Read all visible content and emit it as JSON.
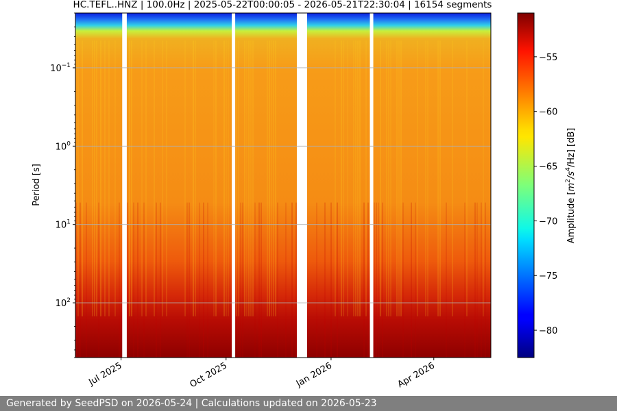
{
  "chart_data": {
    "type": "heatmap",
    "title": "HC.TEFL..HNZ | 100.0Hz | 2025-05-22T00:00:05 - 2026-05-21T22:30:04 | 16154 segments",
    "ylabel": "Period [s]",
    "y_scale": "log",
    "y_inverted": true,
    "y_ticks": [
      {
        "value": 0.1,
        "base": "10",
        "exp": "−1"
      },
      {
        "value": 1,
        "base": "10",
        "exp": "0"
      },
      {
        "value": 10,
        "base": "10",
        "exp": "1"
      },
      {
        "value": 100,
        "base": "10",
        "exp": "2"
      }
    ],
    "ylim": [
      0.02,
      500
    ],
    "x_type": "date",
    "xlim": [
      "2025-05-22",
      "2026-05-21"
    ],
    "x_ticks": [
      {
        "date": "2025-07-01",
        "label": "Jul 2025"
      },
      {
        "date": "2025-10-01",
        "label": "Oct 2025"
      },
      {
        "date": "2026-01-01",
        "label": "Jan 2026"
      },
      {
        "date": "2026-04-01",
        "label": "Apr 2026"
      }
    ],
    "data_gaps": [
      {
        "start": "2025-07-02",
        "end": "2025-07-06"
      },
      {
        "start": "2025-10-06",
        "end": "2025-10-09"
      },
      {
        "start": "2025-12-02",
        "end": "2025-12-11"
      },
      {
        "start": "2026-02-04",
        "end": "2026-02-07"
      }
    ],
    "colorbar": {
      "label_prefix": "Amplitude [",
      "label_unit": "m",
      "label_exp1": "2",
      "label_mid": "/s",
      "label_exp2": "4",
      "label_suffix": "/Hz] [dB]",
      "vmin": -82.5,
      "vmax": -51,
      "ticks": [
        -55,
        -60,
        -65,
        -70,
        -75,
        -80
      ],
      "tick_labels": [
        "−55",
        "−60",
        "−65",
        "−70",
        "−75",
        "−80"
      ],
      "colormap": "jet"
    },
    "grid": true
  },
  "footer": {
    "text": "Generated by SeedPSD on 2026-05-24 | Calculations updated on 2026-05-23"
  }
}
